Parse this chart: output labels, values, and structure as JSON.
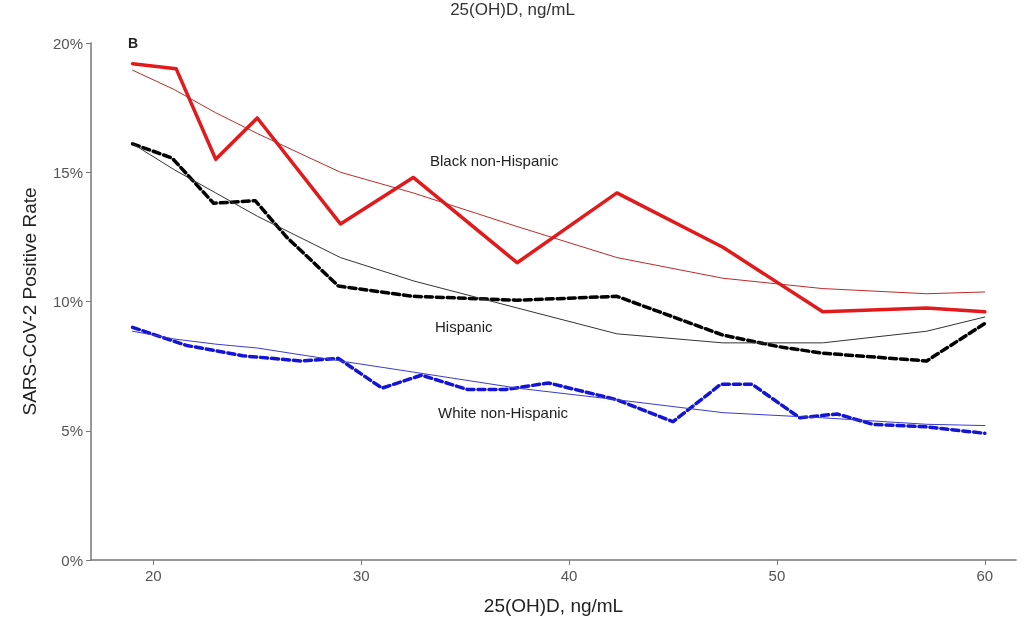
{
  "chart_data": {
    "type": "line",
    "xlabel": "25(OH)D, ng/mL",
    "ylabel": "SARS-CoV-2 Positive Rate",
    "annotations": [
      "25(OH)D, ng/mL",
      "B",
      "Black non-Hispanic",
      "Hispanic",
      "White non-Hispanic"
    ],
    "series": [
      {
        "color": "#e31a1c",
        "line_style": "solid",
        "x": [
          19,
          21.1,
          23,
          25,
          29,
          32.5,
          37.5,
          42.3,
          47.4,
          52.2,
          57.2,
          60
        ],
        "values": [
          19.2,
          19.0,
          15.5,
          17.1,
          13.0,
          14.8,
          11.5,
          14.2,
          12.1,
          9.6,
          9.75,
          9.6
        ]
      },
      {
        "color": "#c0282a",
        "line_style": "solid",
        "x": [
          19,
          21,
          23,
          25,
          29,
          32.5,
          37.5,
          42.3,
          47.4,
          52.2,
          57.2,
          60
        ],
        "values": [
          18.95,
          18.2,
          17.3,
          16.5,
          15.0,
          14.2,
          12.9,
          11.7,
          10.9,
          10.5,
          10.3,
          10.37
        ]
      },
      {
        "color": "#000000",
        "line_style": "dashed",
        "x": [
          19,
          20.9,
          22.9,
          24.9,
          26.4,
          28.9,
          32.5,
          37.5,
          42.3,
          47.4,
          50.1,
          52.2,
          57.2,
          60
        ],
        "values": [
          16.1,
          15.55,
          13.8,
          13.9,
          12.5,
          10.6,
          10.2,
          10.05,
          10.2,
          8.7,
          8.25,
          8.0,
          7.7,
          9.15
        ]
      },
      {
        "color": "#333333",
        "line_style": "solid",
        "x": [
          19,
          21,
          23,
          25,
          29,
          32.5,
          37.5,
          42.3,
          47.4,
          52.2,
          57.2,
          60
        ],
        "values": [
          16.1,
          15.1,
          14.2,
          13.3,
          11.7,
          10.8,
          9.75,
          8.75,
          8.4,
          8.4,
          8.85,
          9.4
        ]
      },
      {
        "color": "#1414d6",
        "line_style": "dashed",
        "x": [
          19,
          21.6,
          24.3,
          27.1,
          28.9,
          31.0,
          32.9,
          35.1,
          37.0,
          39.0,
          42.3,
          45.0,
          47.3,
          48.8,
          51.1,
          52.9,
          54.6,
          57.2,
          60
        ],
        "values": [
          9.0,
          8.3,
          7.9,
          7.7,
          7.8,
          6.65,
          7.15,
          6.6,
          6.6,
          6.85,
          6.2,
          5.35,
          6.8,
          6.8,
          5.5,
          5.65,
          5.25,
          5.15,
          4.9
        ]
      },
      {
        "color": "#3a3ad0",
        "line_style": "solid",
        "x": [
          19,
          21,
          23,
          25,
          29,
          32.5,
          37.5,
          42.3,
          47.4,
          52.2,
          57.2,
          60
        ],
        "values": [
          8.85,
          8.55,
          8.35,
          8.2,
          7.7,
          7.27,
          6.65,
          6.2,
          5.7,
          5.5,
          5.25,
          5.2
        ]
      }
    ],
    "xlim": [
      17,
      61.5
    ],
    "xticks": [
      20,
      30,
      40,
      50,
      60
    ],
    "ylim": [
      0,
      20
    ],
    "yticks": [
      {
        "value": 0,
        "label": "0%"
      },
      {
        "value": 5,
        "label": "5%"
      },
      {
        "value": 10,
        "label": "10%"
      },
      {
        "value": 15,
        "label": "15%"
      },
      {
        "value": 20,
        "label": "20%"
      }
    ],
    "grid": false,
    "marker": "none"
  }
}
